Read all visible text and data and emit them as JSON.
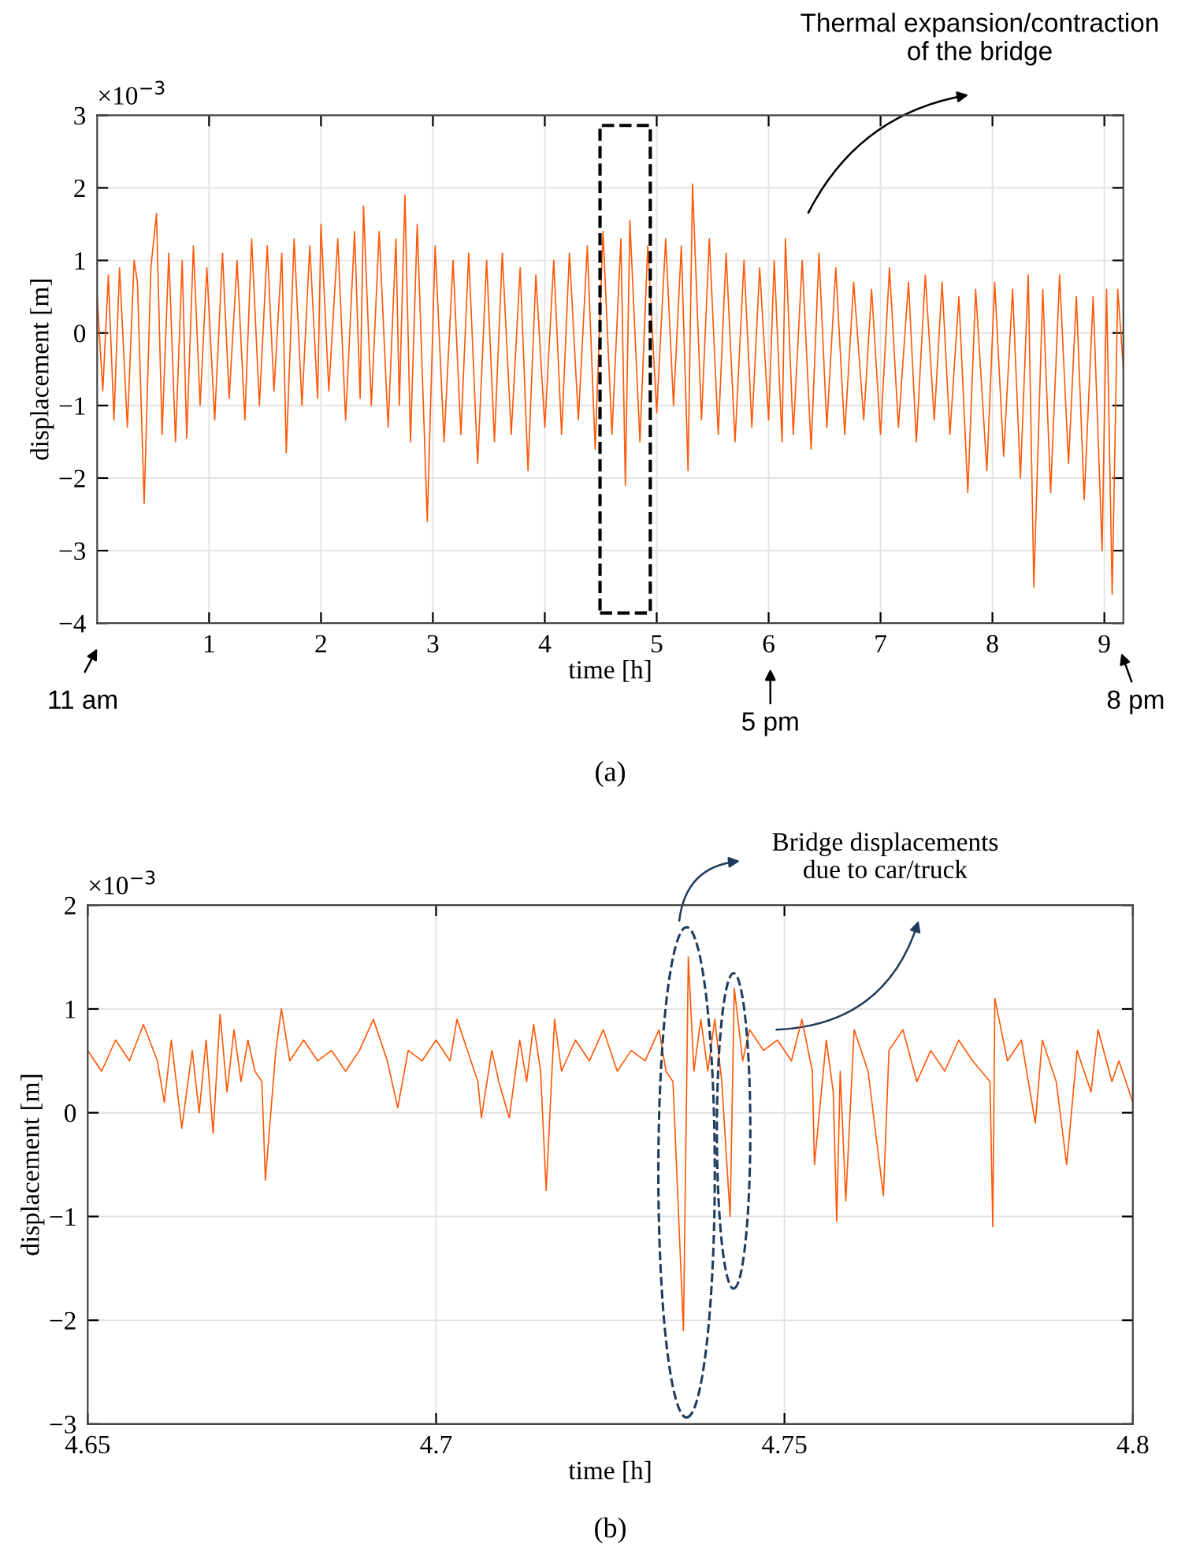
{
  "chart_data": [
    {
      "type": "line",
      "xlabel": "time [h]",
      "ylabel": "displacement [m]",
      "xlim": [
        0,
        9.17
      ],
      "ylim": [
        -4,
        3
      ],
      "xticks": [
        1,
        2,
        3,
        4,
        5,
        6,
        7,
        8,
        9
      ],
      "yticks": [
        {
          "value": -4,
          "label": "−4"
        },
        {
          "value": -3,
          "label": "−3"
        },
        {
          "value": -2,
          "label": "−2"
        },
        {
          "value": -1,
          "label": "−1"
        },
        0,
        1,
        2,
        3
      ],
      "grid": true,
      "line_style": "solid",
      "annotations": [
        "×10$^{−3}$",
        "11 am",
        "5 pm",
        "8 pm",
        "Thermal expansion/contraction\nof the bridge",
        "(a)"
      ],
      "series": [
        {
          "color": "#ff5a0a",
          "x": [
            0.0,
            0.05,
            0.1,
            0.15,
            0.2,
            0.27,
            0.33,
            0.36,
            0.42,
            0.48,
            0.53,
            0.58,
            0.64,
            0.7,
            0.76,
            0.8,
            0.86,
            0.92,
            0.98,
            1.05,
            1.12,
            1.18,
            1.25,
            1.32,
            1.38,
            1.45,
            1.52,
            1.58,
            1.65,
            1.69,
            1.76,
            1.83,
            1.9,
            1.97,
            2.0,
            2.07,
            2.15,
            2.22,
            2.3,
            2.35,
            2.38,
            2.45,
            2.52,
            2.6,
            2.67,
            2.7,
            2.75,
            2.8,
            2.86,
            2.95,
            3.02,
            3.1,
            3.18,
            3.25,
            3.32,
            3.4,
            3.48,
            3.55,
            3.62,
            3.7,
            3.78,
            3.85,
            3.92,
            4.0,
            4.08,
            4.15,
            4.22,
            4.3,
            4.38,
            4.45,
            4.52,
            4.6,
            4.68,
            4.72,
            4.76,
            4.85,
            4.92,
            5.0,
            5.08,
            5.15,
            5.22,
            5.28,
            5.32,
            5.4,
            5.47,
            5.55,
            5.62,
            5.7,
            5.78,
            5.85,
            5.92,
            6.0,
            6.05,
            6.12,
            6.15,
            6.22,
            6.3,
            6.38,
            6.45,
            6.52,
            6.6,
            6.68,
            6.76,
            6.85,
            6.92,
            7.0,
            7.08,
            7.16,
            7.25,
            7.32,
            7.4,
            7.48,
            7.55,
            7.62,
            7.7,
            7.78,
            7.85,
            7.95,
            8.02,
            8.1,
            8.18,
            8.25,
            8.32,
            8.37,
            8.45,
            8.52,
            8.6,
            8.68,
            8.75,
            8.82,
            8.9,
            8.98,
            9.02,
            9.07,
            9.12,
            9.17
          ],
          "values": [
            0.5,
            -0.8,
            0.8,
            -1.2,
            0.9,
            -1.3,
            1.0,
            0.7,
            -2.35,
            0.9,
            1.65,
            -1.4,
            1.1,
            -1.5,
            1.0,
            -1.45,
            1.2,
            -1.0,
            0.9,
            -1.2,
            1.1,
            -0.9,
            1.0,
            -1.2,
            1.3,
            -1.0,
            1.2,
            -0.8,
            1.1,
            -1.65,
            1.3,
            -1.0,
            1.2,
            -0.9,
            1.5,
            -0.8,
            1.3,
            -1.2,
            1.4,
            -0.9,
            1.75,
            -1.0,
            1.4,
            -1.3,
            1.3,
            -1.0,
            1.9,
            -1.5,
            1.5,
            -2.6,
            1.2,
            -1.5,
            1.0,
            -1.4,
            1.1,
            -1.8,
            1.0,
            -1.5,
            1.1,
            -1.4,
            0.9,
            -1.9,
            0.8,
            -1.3,
            1.0,
            -1.4,
            1.1,
            -1.2,
            1.2,
            -1.6,
            1.4,
            -1.4,
            1.3,
            -2.1,
            1.55,
            -1.5,
            1.2,
            -1.1,
            1.3,
            -1.0,
            1.2,
            -1.9,
            2.05,
            -1.2,
            1.3,
            -1.4,
            1.1,
            -1.5,
            1.0,
            -1.3,
            0.9,
            -1.2,
            1.0,
            -1.5,
            1.3,
            -1.4,
            1.0,
            -1.6,
            1.1,
            -1.3,
            0.9,
            -1.4,
            0.7,
            -1.2,
            0.6,
            -1.4,
            0.9,
            -1.3,
            0.7,
            -1.5,
            0.8,
            -1.2,
            0.7,
            -1.4,
            0.5,
            -2.2,
            0.6,
            -1.9,
            0.7,
            -1.7,
            0.6,
            -2.0,
            0.8,
            -3.5,
            0.6,
            -2.2,
            0.8,
            -1.8,
            0.5,
            -2.3,
            0.5,
            -3.0,
            0.6,
            -3.6,
            0.6,
            -0.5
          ]
        }
      ]
    },
    {
      "type": "line",
      "xlabel": "time [h]",
      "ylabel": "displacement [m]",
      "xlim": [
        4.65,
        4.8
      ],
      "ylim": [
        -3,
        2
      ],
      "xticks": [
        4.65,
        4.7,
        4.75,
        4.8
      ],
      "yticks": [
        {
          "value": -3,
          "label": "−3"
        },
        {
          "value": -2,
          "label": "−2"
        },
        {
          "value": -1,
          "label": "−1"
        },
        0,
        1,
        2
      ],
      "grid": true,
      "line_style": "solid",
      "annotations": [
        "×10$^{−3}$",
        "Bridge displacements\ndue to car/truck",
        "(b)"
      ],
      "series": [
        {
          "color": "#ff5a0a",
          "x": [
            4.65,
            4.652,
            4.654,
            4.656,
            4.658,
            4.66,
            4.661,
            4.662,
            4.6635,
            4.665,
            4.666,
            4.667,
            4.668,
            4.669,
            4.67,
            4.671,
            4.672,
            4.673,
            4.674,
            4.675,
            4.6755,
            4.677,
            4.6778,
            4.679,
            4.681,
            4.683,
            4.685,
            4.687,
            4.689,
            4.691,
            4.693,
            4.6945,
            4.696,
            4.698,
            4.7,
            4.702,
            4.703,
            4.705,
            4.706,
            4.7065,
            4.708,
            4.709,
            4.7105,
            4.712,
            4.713,
            4.714,
            4.715,
            4.7158,
            4.717,
            4.718,
            4.72,
            4.722,
            4.724,
            4.726,
            4.728,
            4.73,
            4.732,
            4.733,
            4.734,
            4.7355,
            4.7362,
            4.737,
            4.738,
            4.739,
            4.74,
            4.741,
            4.7422,
            4.7428,
            4.744,
            4.745,
            4.747,
            4.749,
            4.751,
            4.7525,
            4.754,
            4.7543,
            4.756,
            4.757,
            4.7575,
            4.758,
            4.7588,
            4.76,
            4.762,
            4.7642,
            4.765,
            4.767,
            4.769,
            4.771,
            4.773,
            4.775,
            4.777,
            4.7795,
            4.7799,
            4.7802,
            4.782,
            4.784,
            4.786,
            4.787,
            4.789,
            4.7905,
            4.792,
            4.794,
            4.795,
            4.797,
            4.798,
            4.8
          ],
          "values": [
            0.6,
            0.4,
            0.7,
            0.5,
            0.85,
            0.5,
            0.1,
            0.7,
            -0.15,
            0.6,
            0.0,
            0.7,
            -0.2,
            0.95,
            0.2,
            0.8,
            0.3,
            0.7,
            0.4,
            0.3,
            -0.65,
            0.6,
            1.0,
            0.5,
            0.7,
            0.5,
            0.6,
            0.4,
            0.6,
            0.9,
            0.5,
            0.05,
            0.6,
            0.5,
            0.7,
            0.5,
            0.9,
            0.5,
            0.3,
            -0.05,
            0.6,
            0.3,
            -0.05,
            0.7,
            0.3,
            0.85,
            0.4,
            -0.75,
            0.9,
            0.4,
            0.7,
            0.5,
            0.8,
            0.4,
            0.6,
            0.5,
            0.8,
            0.4,
            0.3,
            -2.1,
            1.5,
            0.4,
            0.9,
            0.4,
            0.9,
            0.3,
            -1.0,
            1.2,
            0.5,
            0.8,
            0.6,
            0.7,
            0.5,
            0.9,
            0.4,
            -0.5,
            0.7,
            0.2,
            -1.05,
            0.4,
            -0.85,
            0.8,
            0.4,
            -0.8,
            0.6,
            0.8,
            0.3,
            0.6,
            0.4,
            0.7,
            0.5,
            0.3,
            -1.1,
            1.1,
            0.5,
            0.7,
            -0.1,
            0.7,
            0.3,
            -0.5,
            0.6,
            0.2,
            0.8,
            0.3,
            0.5,
            0.1
          ]
        }
      ]
    }
  ]
}
